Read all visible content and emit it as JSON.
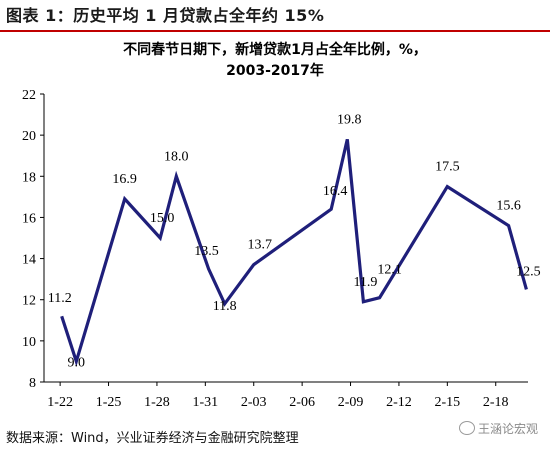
{
  "figure": {
    "title": "图表 1：历史平均 1 月贷款占全年约 15%",
    "source": "数据来源：Wind，兴业证券经济与金融研究院整理",
    "watermark": "王涵论宏观"
  },
  "chart_data": {
    "type": "line",
    "title_line1": "不同春节日期下，新增贷款1月占全年比例，%，",
    "title_line2": "2003-2017年",
    "xlabel": "",
    "ylabel": "",
    "x_ticks": [
      "1-22",
      "1-25",
      "1-28",
      "1-31",
      "2-03",
      "2-06",
      "2-09",
      "2-12",
      "2-15",
      "2-18"
    ],
    "x_tick_days": [
      22,
      25,
      28,
      31,
      34,
      37,
      40,
      43,
      46,
      49
    ],
    "ylim": [
      8,
      22
    ],
    "y_ticks": [
      8,
      10,
      12,
      14,
      16,
      18,
      20,
      22
    ],
    "grid": false,
    "line_color": "#1f1f7a",
    "series": [
      {
        "points": [
          {
            "x": 22.1,
            "y": 11.2,
            "label": "11.2"
          },
          {
            "x": 23.0,
            "y": 9.0,
            "label": "9.0"
          },
          {
            "x": 26.0,
            "y": 16.9,
            "label": "16.9"
          },
          {
            "x": 28.2,
            "y": 15.0,
            "label": "15.0"
          },
          {
            "x": 29.2,
            "y": 18.0,
            "label": "18.0"
          },
          {
            "x": 31.2,
            "y": 13.5,
            "label": "13.5"
          },
          {
            "x": 32.2,
            "y": 11.8,
            "label": "11.8"
          },
          {
            "x": 34.0,
            "y": 13.7,
            "label": "13.7"
          },
          {
            "x": 38.8,
            "y": 16.4,
            "label": "16.4"
          },
          {
            "x": 39.8,
            "y": 19.8,
            "label": "19.8"
          },
          {
            "x": 40.8,
            "y": 11.9,
            "label": "11.9"
          },
          {
            "x": 41.8,
            "y": 12.1,
            "label": "12.1"
          },
          {
            "x": 46.0,
            "y": 17.5,
            "label": "17.5"
          },
          {
            "x": 49.8,
            "y": 15.6,
            "label": "15.6"
          },
          {
            "x": 50.9,
            "y": 12.5,
            "label": "12.5"
          }
        ]
      }
    ]
  }
}
